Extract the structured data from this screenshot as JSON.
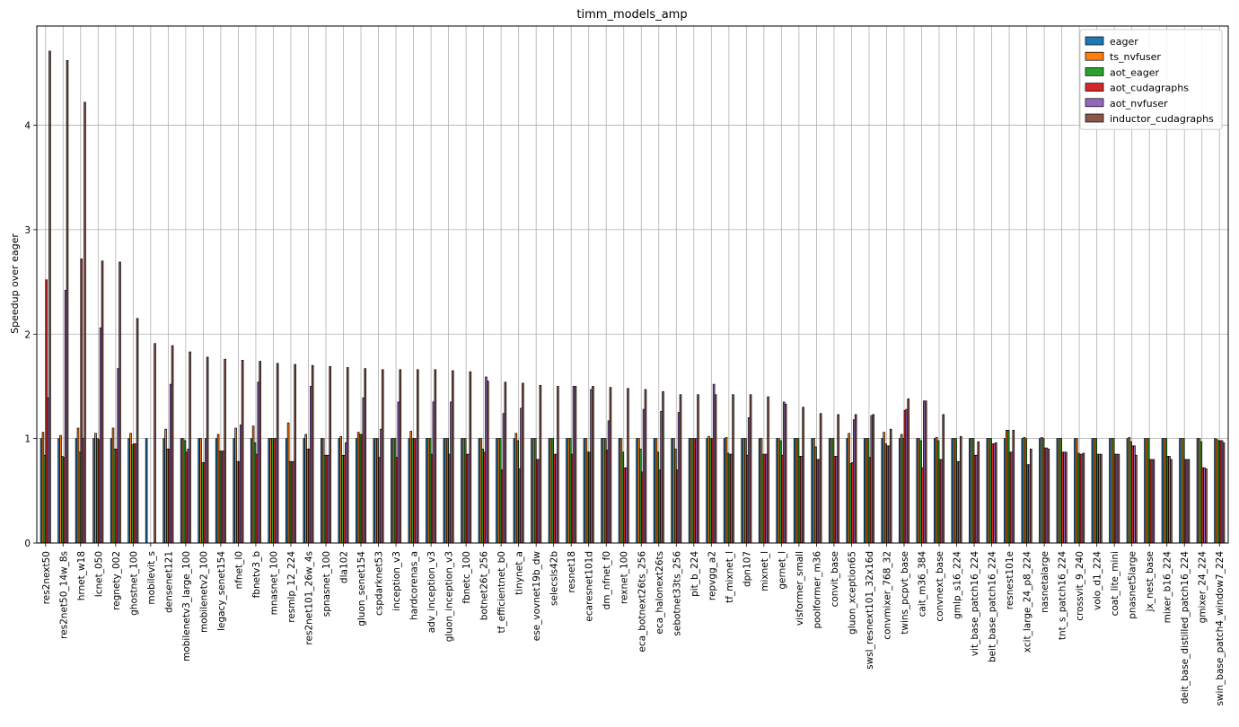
{
  "chart_data": {
    "type": "bar",
    "title": "timm_models_amp",
    "xlabel": "",
    "ylabel": "Speedup over eager",
    "ylim": [
      0,
      4.95
    ],
    "yticks": [
      0,
      1,
      2,
      3,
      4
    ],
    "grid": true,
    "legend_position": "top-right",
    "categories": [
      "res2next50",
      "res2net50_14w_8s",
      "hrnet_w18",
      "lcnet_050",
      "regnety_002",
      "ghostnet_100",
      "mobilevit_s",
      "densenet121",
      "mobilenetv3_large_100",
      "mobilenetv2_100",
      "legacy_senet154",
      "nfnet_l0",
      "fbnetv3_b",
      "mnasnet_100",
      "resmlp_12_224",
      "res2net101_26w_4s",
      "spnasnet_100",
      "dla102",
      "gluon_senet154",
      "cspdarknet53",
      "inception_v3",
      "hardcorenas_a",
      "adv_inception_v3",
      "gluon_inception_v3",
      "fbnetc_100",
      "botnet26t_256",
      "tf_efficientnet_b0",
      "tinynet_a",
      "ese_vovnet19b_dw",
      "selecsls42b",
      "resnet18",
      "ecaresnet101d",
      "dm_nfnet_f0",
      "rexnet_100",
      "eca_botnext26ts_256",
      "eca_halonext26ts",
      "sebotnet33ts_256",
      "pit_b_224",
      "repvgg_a2",
      "tf_mixnet_l",
      "dpn107",
      "mixnet_l",
      "gernet_l",
      "visformer_small",
      "poolformer_m36",
      "convit_base",
      "gluon_xception65",
      "swsl_resnext101_32x16d",
      "convmixer_768_32",
      "twins_pcpvt_base",
      "cait_m36_384",
      "convnext_base",
      "gmlp_s16_224",
      "vit_base_patch16_224",
      "beit_base_patch16_224",
      "resnest101e",
      "xcit_large_24_p8_224",
      "nasnetalarge",
      "tnt_s_patch16_224",
      "crossvit_9_240",
      "volo_d1_224",
      "coat_lite_mini",
      "pnasnet5large",
      "jx_nest_base",
      "mixer_b16_224",
      "deit_base_distilled_patch16_224",
      "gmixer_24_224",
      "swin_base_patch4_window7_224"
    ],
    "series": [
      {
        "name": "eager",
        "color": "#1f77b4",
        "values": [
          1,
          1,
          1,
          1,
          1,
          1,
          1,
          1,
          1,
          1,
          1,
          1,
          1,
          1,
          1,
          1,
          1,
          1,
          1,
          1,
          1,
          1,
          1,
          1,
          1,
          1,
          1,
          1,
          1,
          1,
          1,
          1,
          1,
          1,
          1,
          1,
          1,
          1,
          1,
          1,
          1,
          1,
          1,
          1,
          1,
          1,
          1,
          1,
          1,
          1,
          1,
          1,
          1,
          1,
          1,
          1,
          1,
          1,
          1,
          1,
          1,
          1,
          1,
          1,
          1,
          1,
          1,
          1
        ]
      },
      {
        "name": "ts_nvfuser",
        "color": "#ff7f0e",
        "values": [
          1.06,
          1.03,
          1.1,
          1.05,
          1.1,
          1.05,
          0,
          1.09,
          1.0,
          1.0,
          1.04,
          1.1,
          1.12,
          1.0,
          1.15,
          1.04,
          1.0,
          1.02,
          1.06,
          1.0,
          1.0,
          1.07,
          1.0,
          1.0,
          1.0,
          1.0,
          1.0,
          1.05,
          1.0,
          1.0,
          1.0,
          1.0,
          1.0,
          1.0,
          1.0,
          1.0,
          1.0,
          1.0,
          1.02,
          1.01,
          1.0,
          1.0,
          1.0,
          1.0,
          1.0,
          1.0,
          1.05,
          1.0,
          1.06,
          1.04,
          1.0,
          1.01,
          1.0,
          1.0,
          1.0,
          1.08,
          1.01,
          1.01,
          1.0,
          1.0,
          1.0,
          1.0,
          1.01,
          1.0,
          1.0,
          1.0,
          1.0,
          0.99
        ]
      },
      {
        "name": "aot_eager",
        "color": "#2ca02c",
        "values": [
          0.84,
          0.83,
          0.87,
          1.0,
          0.9,
          0.94,
          0,
          0.9,
          0.98,
          0.77,
          0.88,
          0.78,
          0.96,
          1.0,
          0.78,
          0.9,
          0.84,
          0.84,
          1.04,
          1.0,
          1.0,
          1.0,
          1.0,
          1.0,
          1.0,
          0.9,
          1.0,
          0.98,
          1.0,
          1.0,
          1.0,
          0.87,
          1.0,
          0.87,
          0.9,
          0.87,
          0.9,
          1.0,
          1.0,
          0.86,
          1.0,
          0.85,
          0.98,
          1.0,
          0.92,
          1.0,
          0.76,
          1.0,
          0.95,
          1.0,
          0.98,
          0.98,
          1.0,
          1.0,
          1.0,
          1.08,
          1.0,
          1.0,
          1.0,
          0.86,
          1.0,
          1.0,
          0.97,
          1.0,
          1.0,
          1.0,
          0.97,
          0.98
        ]
      },
      {
        "name": "aot_cudagraphs",
        "color": "#d62728",
        "values": [
          2.52,
          0.82,
          2.72,
          0.99,
          0.9,
          0.95,
          0,
          0.9,
          0.87,
          0.77,
          0.88,
          0.78,
          0.85,
          1.0,
          0.78,
          0.9,
          0.84,
          0.84,
          1.04,
          0.82,
          0.82,
          1.0,
          0.85,
          0.85,
          0.85,
          0.87,
          0.7,
          0.71,
          0.8,
          0.85,
          0.85,
          0.87,
          0.89,
          0.72,
          0.68,
          0.7,
          0.7,
          1.0,
          1.0,
          0.85,
          0.84,
          0.85,
          0.84,
          0.83,
          0.8,
          0.83,
          0.77,
          0.82,
          0.93,
          1.27,
          0.72,
          0.8,
          0.78,
          0.84,
          0.95,
          0.87,
          0.75,
          0.91,
          0.87,
          0.85,
          0.85,
          0.85,
          0.93,
          0.8,
          0.83,
          0.8,
          0.72,
          0.98
        ]
      },
      {
        "name": "aot_nvfuser",
        "color": "#9467bd",
        "values": [
          1.39,
          2.42,
          1.0,
          2.06,
          1.67,
          0.95,
          0,
          1.52,
          0.9,
          1.0,
          0.88,
          1.13,
          1.54,
          1.0,
          0.78,
          1.5,
          0.84,
          0.96,
          1.39,
          1.09,
          1.35,
          1.0,
          1.35,
          1.35,
          0.85,
          1.59,
          1.24,
          1.29,
          0.8,
          0.85,
          1.5,
          1.47,
          1.17,
          0.72,
          1.28,
          1.26,
          1.25,
          1.0,
          1.52,
          0.85,
          1.2,
          0.85,
          1.35,
          0.83,
          0.8,
          0.83,
          1.18,
          1.22,
          0.93,
          1.28,
          1.36,
          0.8,
          0.78,
          0.84,
          0.95,
          0.87,
          0.75,
          0.91,
          0.87,
          0.85,
          0.85,
          0.85,
          0.93,
          0.8,
          0.83,
          0.8,
          0.72,
          0.98
        ]
      },
      {
        "name": "inductor_cudagraphs",
        "color": "#8c564b",
        "values": [
          4.71,
          4.62,
          4.22,
          2.7,
          2.69,
          2.15,
          1.91,
          1.89,
          1.83,
          1.78,
          1.76,
          1.75,
          1.74,
          1.72,
          1.71,
          1.7,
          1.69,
          1.68,
          1.67,
          1.66,
          1.66,
          1.66,
          1.66,
          1.65,
          1.64,
          1.55,
          1.54,
          1.53,
          1.51,
          1.5,
          1.5,
          1.5,
          1.49,
          1.48,
          1.47,
          1.45,
          1.42,
          1.42,
          1.42,
          1.42,
          1.42,
          1.4,
          1.33,
          1.3,
          1.24,
          1.23,
          1.23,
          1.23,
          1.09,
          1.38,
          1.36,
          1.23,
          1.02,
          0.97,
          0.96,
          1.08,
          0.9,
          0.9,
          0.87,
          0.86,
          0.85,
          0.85,
          0.84,
          0.8,
          0.8,
          0.8,
          0.71,
          0.96
        ]
      }
    ]
  }
}
